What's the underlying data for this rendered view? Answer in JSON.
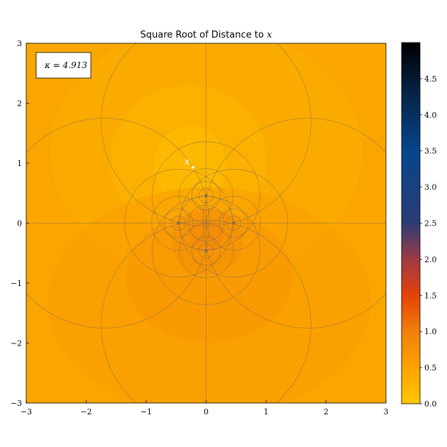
{
  "chart_data": {
    "type": "heatmap",
    "title": "Square Root of Distance to",
    "title_var": "x",
    "xlim": [
      -3,
      3
    ],
    "ylim": [
      -3,
      3
    ],
    "x_ticks": [
      -3,
      -2,
      -1,
      0,
      1,
      2,
      3
    ],
    "y_ticks": [
      -3,
      -2,
      -1,
      0,
      1,
      2,
      3
    ],
    "x_tick_labels": [
      "−3",
      "−2",
      "−1",
      "0",
      "1",
      "2",
      "3"
    ],
    "y_tick_labels": [
      "−3",
      "−2",
      "−1",
      "0",
      "1",
      "2",
      "3"
    ],
    "colorbar": {
      "min": 0.0,
      "max": 5.0,
      "ticks": [
        0.0,
        0.5,
        1.0,
        1.5,
        2.0,
        2.5,
        3.0,
        3.5,
        4.0,
        4.5
      ],
      "tick_labels": [
        "0.0",
        "0.5",
        "1.0",
        "1.5",
        "2.0",
        "2.5",
        "3.0",
        "3.5",
        "4.0",
        "4.5"
      ],
      "colormap": [
        [
          0.0,
          "#ffc800"
        ],
        [
          0.1,
          "#fba200"
        ],
        [
          0.2,
          "#f27f0a"
        ],
        [
          0.3,
          "#e4420a"
        ],
        [
          0.4,
          "#9e3a44"
        ],
        [
          0.5,
          "#2c3c74"
        ],
        [
          0.7,
          "#07458c"
        ],
        [
          0.85,
          "#06254a"
        ],
        [
          1.0,
          "#000000"
        ]
      ]
    },
    "point": {
      "label": "x",
      "x": -0.22,
      "y": 0.93
    },
    "kappa_label": "κ = 4.913",
    "grid_circles": [
      {
        "cx": 0,
        "cy": 0.46,
        "r": 0.12
      },
      {
        "cx": 0,
        "cy": 0.46,
        "r": 0.24
      },
      {
        "cx": 0,
        "cy": 0.46,
        "r": 0.45
      },
      {
        "cx": 0,
        "cy": 0.46,
        "r": 0.9
      },
      {
        "cx": 0,
        "cy": 1.7,
        "r": 1.75
      },
      {
        "cx": 0,
        "cy": -0.46,
        "r": 0.12
      },
      {
        "cx": 0,
        "cy": -0.46,
        "r": 0.24
      },
      {
        "cx": 0,
        "cy": -0.46,
        "r": 0.45
      },
      {
        "cx": 0,
        "cy": -0.46,
        "r": 0.9
      },
      {
        "cx": 0,
        "cy": -1.7,
        "r": 1.75
      },
      {
        "cx": 0.46,
        "cy": 0,
        "r": 0.12
      },
      {
        "cx": 0.46,
        "cy": 0,
        "r": 0.24
      },
      {
        "cx": 0.46,
        "cy": 0,
        "r": 0.45
      },
      {
        "cx": 0.46,
        "cy": 0,
        "r": 0.9
      },
      {
        "cx": 1.7,
        "cy": 0,
        "r": 1.75
      },
      {
        "cx": -0.46,
        "cy": 0,
        "r": 0.12
      },
      {
        "cx": -0.46,
        "cy": 0,
        "r": 0.24
      },
      {
        "cx": -0.46,
        "cy": 0,
        "r": 0.45
      },
      {
        "cx": -0.46,
        "cy": 0,
        "r": 0.9
      },
      {
        "cx": -1.7,
        "cy": 0,
        "r": 1.75
      },
      {
        "cx": 0,
        "cy": 0,
        "r": 0.3
      },
      {
        "cx": 0,
        "cy": 0,
        "r": 0.46
      }
    ],
    "singular_points": [
      {
        "x": 0,
        "y": 0.46
      },
      {
        "x": 0,
        "y": -0.46
      },
      {
        "x": 0.46,
        "y": 0
      },
      {
        "x": -0.46,
        "y": 0
      }
    ],
    "regions": [
      {
        "cx": 0,
        "cy": 1.2,
        "rx": 2.6,
        "ry": 2.1,
        "value": 0.33
      },
      {
        "cx": -0.3,
        "cy": 1.05,
        "rx": 1.3,
        "ry": 1.25,
        "value": 0.22
      },
      {
        "cx": -0.27,
        "cy": 0.97,
        "rx": 0.6,
        "ry": 0.65,
        "value": 0.12
      },
      {
        "cx": 0.05,
        "cy": -1.3,
        "rx": 2.7,
        "ry": 1.9,
        "value": 0.58
      },
      {
        "cx": 0.05,
        "cy": -0.9,
        "rx": 1.4,
        "ry": 1.1,
        "value": 0.68
      },
      {
        "cx": 0.02,
        "cy": -0.3,
        "rx": 0.6,
        "ry": 0.55,
        "value": 0.78
      },
      {
        "cx": 0,
        "cy": -0.2,
        "rx": 0.28,
        "ry": 0.25,
        "value": 0.9
      }
    ],
    "background_value": 0.45
  }
}
